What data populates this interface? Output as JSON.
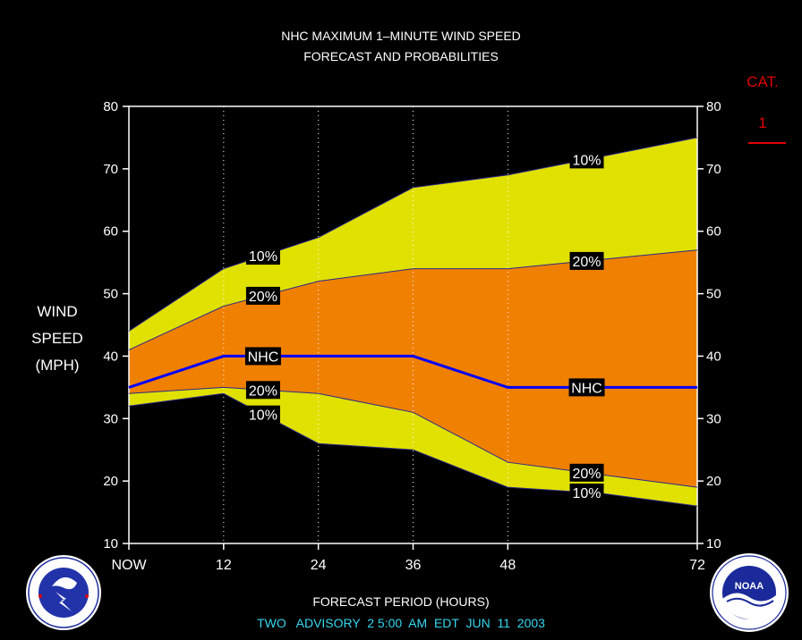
{
  "header": {
    "title_line1": "NHC MAXIMUM 1–MINUTE WIND SPEED",
    "title_line2": "FORECAST AND PROBABILITIES"
  },
  "category": {
    "label": "CAT.",
    "value": "1",
    "color": "#e00000"
  },
  "axis": {
    "ylabel_line1": "WIND",
    "ylabel_line2": "SPEED",
    "ylabel_line3": "(MPH)",
    "xlabel": "FORECAST PERIOD (HOURS)"
  },
  "footer": {
    "advisory": "TWO   ADVISORY  2 5:00  AM  EDT  JUN  11  2003"
  },
  "logos": {
    "left": "nws-logo-icon",
    "right": "noaa-logo-icon"
  },
  "colors": {
    "band_10": "#e1e100",
    "band_20": "#f08000",
    "nhc_line": "#0000ff",
    "background": "#000000"
  },
  "chart_data": {
    "type": "area",
    "title": "NHC MAXIMUM 1–MINUTE WIND SPEED FORECAST AND PROBABILITIES",
    "xlabel": "FORECAST PERIOD (HOURS)",
    "ylabel": "WIND SPEED (MPH)",
    "xlim": [
      0,
      72
    ],
    "ylim": [
      10,
      80
    ],
    "x_ticks": [
      0,
      12,
      24,
      36,
      48,
      72
    ],
    "x_tick_labels": [
      "NOW",
      "12",
      "24",
      "36",
      "48",
      "72"
    ],
    "y_ticks": [
      10,
      20,
      30,
      40,
      50,
      60,
      70,
      80
    ],
    "y_tick_labels": [
      "10",
      "20",
      "30",
      "40",
      "50",
      "60",
      "70",
      "80"
    ],
    "dotted_x_grid": [
      12,
      24,
      36,
      48
    ],
    "x": [
      0,
      12,
      24,
      36,
      48,
      60,
      72
    ],
    "series": [
      {
        "name": "10%",
        "role": "upper",
        "values": [
          44,
          54,
          59,
          67,
          69,
          72,
          75
        ],
        "label_x": 17,
        "label_x2": 58
      },
      {
        "name": "20%",
        "role": "upper",
        "values": [
          41,
          48,
          52,
          54,
          54,
          55.5,
          57
        ],
        "label_x": 17,
        "label_x2": 58
      },
      {
        "name": "NHC",
        "role": "forecast",
        "values": [
          35,
          40,
          40,
          40,
          35,
          35,
          35
        ],
        "label_x": 17,
        "label_x2": 58
      },
      {
        "name": "20%",
        "role": "lower",
        "values": [
          34,
          35,
          34,
          31,
          23,
          21,
          19
        ],
        "label_x": 17,
        "label_x2": 58
      },
      {
        "name": "10%",
        "role": "lower",
        "values": [
          32,
          34,
          26,
          25,
          19,
          18,
          16
        ],
        "label_x": 17,
        "label_x2": 58
      }
    ]
  }
}
